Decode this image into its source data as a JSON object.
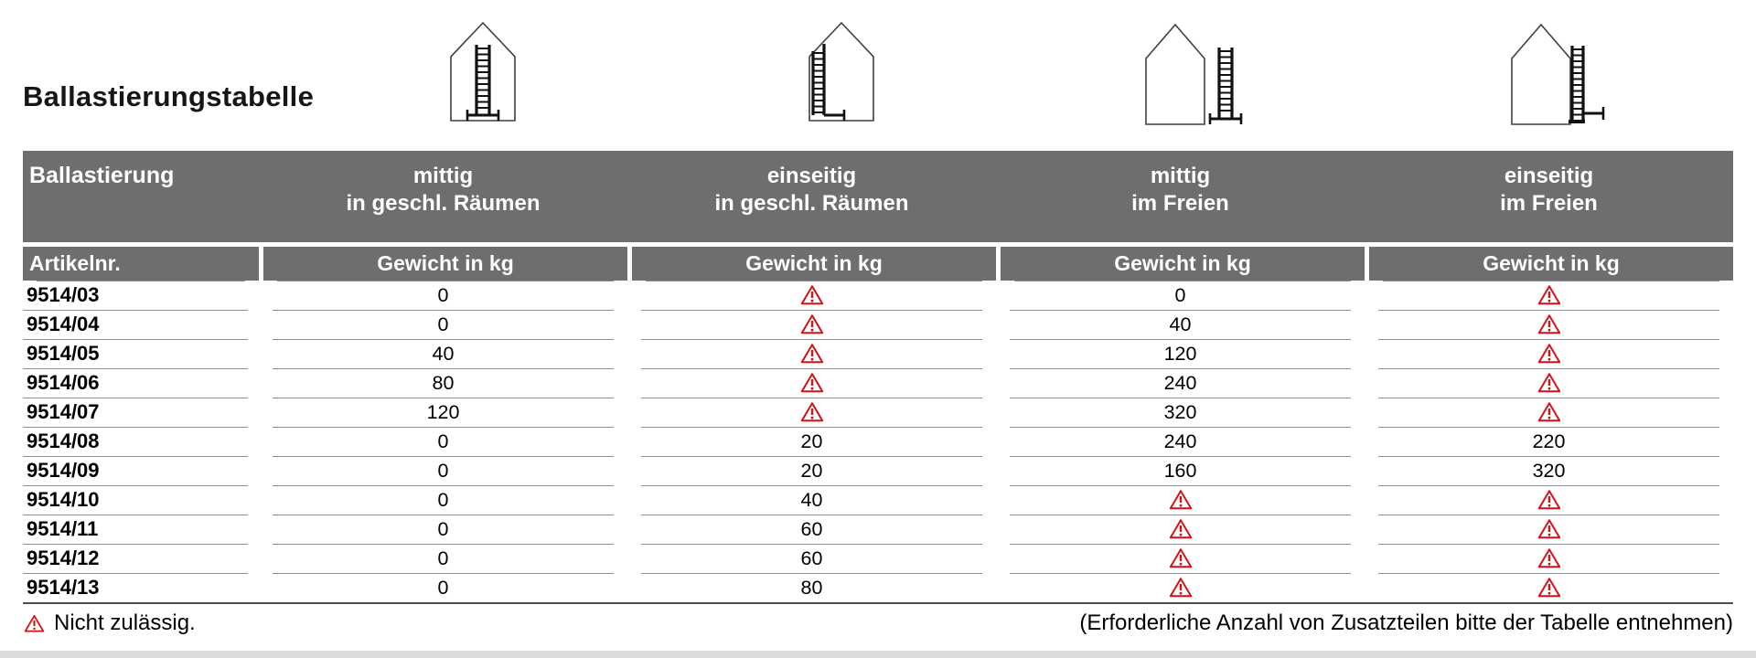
{
  "title": "Ballastierungstabelle",
  "table": {
    "corner_label": "Ballastierung",
    "columns": [
      {
        "line1": "mittig",
        "line2": "in geschl. Räumen",
        "icon": "ladder-free-standing-inside-house"
      },
      {
        "line1": "einseitig",
        "line2": "in geschl. Räumen",
        "icon": "ladder-against-wall-inside-house"
      },
      {
        "line1": "mittig",
        "line2": "im Freien",
        "icon": "ladder-free-standing-outside-house"
      },
      {
        "line1": "einseitig",
        "line2": "im Freien",
        "icon": "ladder-against-wall-outside-house"
      }
    ],
    "subheader": {
      "article_label": "Artikelnr.",
      "weight_label": "Gewicht in kg"
    },
    "rows": [
      {
        "article": "9514/03",
        "values": [
          "0",
          "warning",
          "0",
          "warning"
        ]
      },
      {
        "article": "9514/04",
        "values": [
          "0",
          "warning",
          "40",
          "warning"
        ]
      },
      {
        "article": "9514/05",
        "values": [
          "40",
          "warning",
          "120",
          "warning"
        ]
      },
      {
        "article": "9514/06",
        "values": [
          "80",
          "warning",
          "240",
          "warning"
        ]
      },
      {
        "article": "9514/07",
        "values": [
          "120",
          "warning",
          "320",
          "warning"
        ]
      },
      {
        "article": "9514/08",
        "values": [
          "0",
          "20",
          "240",
          "220"
        ]
      },
      {
        "article": "9514/09",
        "values": [
          "0",
          "20",
          "160",
          "320"
        ]
      },
      {
        "article": "9514/10",
        "values": [
          "0",
          "40",
          "warning",
          "warning"
        ]
      },
      {
        "article": "9514/11",
        "values": [
          "0",
          "60",
          "warning",
          "warning"
        ]
      },
      {
        "article": "9514/12",
        "values": [
          "0",
          "60",
          "warning",
          "warning"
        ]
      },
      {
        "article": "9514/13",
        "values": [
          "0",
          "80",
          "warning",
          "warning"
        ]
      }
    ]
  },
  "footer": {
    "legend": "Nicht zulässig.",
    "note": "(Erforderliche Anzahl von Zusatzteilen bitte der Tabelle entnehmen)"
  },
  "colors": {
    "header_bg": "#6f6e6e",
    "warning_red": "#d01317",
    "row_line": "#8f8f8f",
    "text": "#000000"
  }
}
